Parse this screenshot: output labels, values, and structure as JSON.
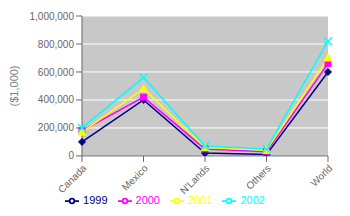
{
  "chart_data": {
    "type": "line",
    "ylabel": "($1,000)",
    "categories": [
      "Canada",
      "Mexico",
      "N'Lands",
      "Others",
      "World"
    ],
    "series": [
      {
        "name": "1999",
        "color": "#000080",
        "marker": "diamond",
        "values": [
          100000,
          400000,
          20000,
          10000,
          600000
        ]
      },
      {
        "name": "2000",
        "color": "#FF00FF",
        "marker": "square",
        "values": [
          180000,
          420000,
          50000,
          30000,
          660000
        ]
      },
      {
        "name": "2001",
        "color": "#FFFF00",
        "marker": "triangle",
        "values": [
          170000,
          480000,
          60000,
          40000,
          700000
        ]
      },
      {
        "name": "2002",
        "color": "#00FFFF",
        "marker": "x",
        "values": [
          200000,
          560000,
          70000,
          50000,
          820000
        ]
      }
    ],
    "ylim": [
      0,
      1000000
    ],
    "yticks": [
      0,
      {
        "value": 200000,
        "label": "200,000"
      },
      {
        "value": 400000,
        "label": "400,000"
      },
      {
        "value": 600000,
        "label": "600,000"
      },
      {
        "value": 800000,
        "label": "800,000"
      },
      {
        "value": 1000000,
        "label": "1,000,000"
      }
    ],
    "grid": true,
    "legend": "bottom"
  }
}
